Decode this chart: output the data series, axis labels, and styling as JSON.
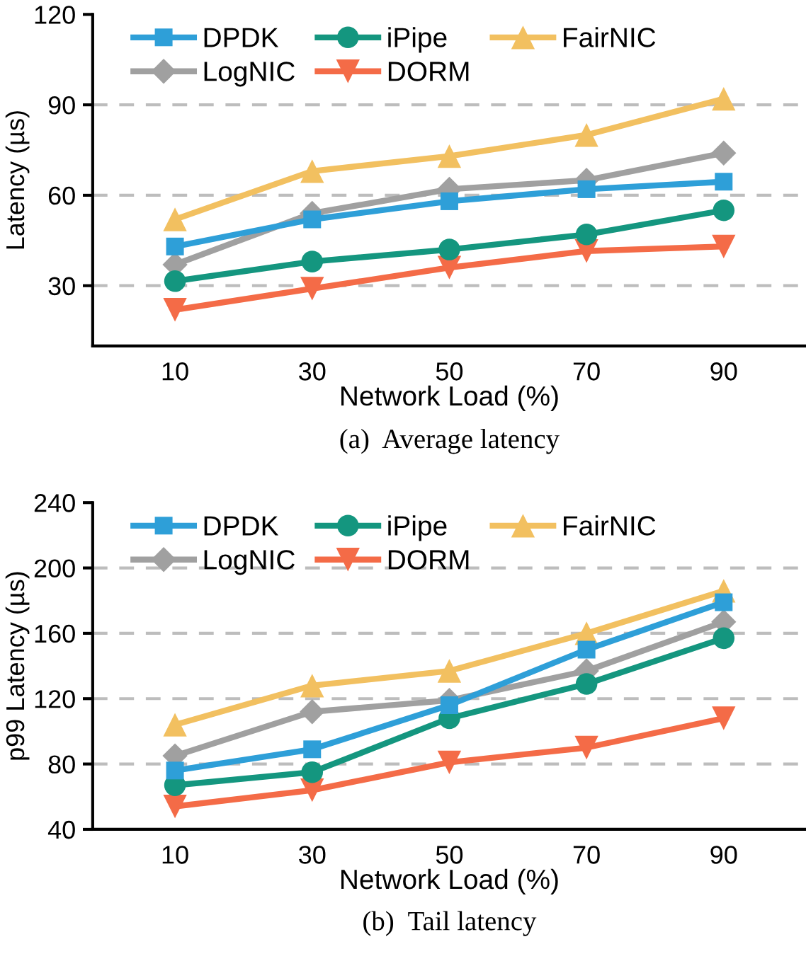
{
  "chart_data": [
    {
      "type": "line",
      "title": "(a)  Average latency",
      "xlabel": "Network Load (%)",
      "ylabel": "Latency (µs)",
      "x": [
        10,
        30,
        50,
        70,
        90
      ],
      "xlim": [
        -2,
        102
      ],
      "xticks": [
        10,
        30,
        50,
        70,
        90
      ],
      "ylim": [
        10,
        120
      ],
      "yticks": [
        30,
        60,
        90,
        120
      ],
      "grid": "y",
      "legend": "top left",
      "series": [
        {
          "name": "DPDK",
          "color": "#2e9fd8",
          "marker": "square",
          "values": [
            43,
            52,
            58,
            62,
            64.5
          ]
        },
        {
          "name": "iPipe",
          "color": "#14967f",
          "marker": "circle",
          "values": [
            31.5,
            38,
            42,
            47,
            55
          ]
        },
        {
          "name": "FairNIC",
          "color": "#f2c060",
          "marker": "triangle",
          "values": [
            52,
            68,
            73,
            80,
            92
          ]
        },
        {
          "name": "LogNIC",
          "color": "#a0a0a0",
          "marker": "diamond",
          "values": [
            37,
            54,
            62,
            65,
            74
          ]
        },
        {
          "name": "DORM",
          "color": "#f46b47",
          "marker": "triangle_down",
          "values": [
            22,
            29,
            36,
            41.5,
            43
          ]
        }
      ]
    },
    {
      "type": "line",
      "title": "(b)  Tail latency",
      "xlabel": "Network Load (%)",
      "ylabel": "p99 Latency (µs)",
      "x": [
        10,
        30,
        50,
        70,
        90
      ],
      "xlim": [
        -2,
        102
      ],
      "xticks": [
        10,
        30,
        50,
        70,
        90
      ],
      "ylim": [
        40,
        240
      ],
      "yticks": [
        40,
        80,
        120,
        160,
        200,
        240
      ],
      "grid": "y",
      "legend": "top left",
      "series": [
        {
          "name": "DPDK",
          "color": "#2e9fd8",
          "marker": "square",
          "values": [
            76,
            89,
            116,
            150,
            179
          ]
        },
        {
          "name": "iPipe",
          "color": "#14967f",
          "marker": "circle",
          "values": [
            67,
            75,
            108,
            129,
            157
          ]
        },
        {
          "name": "FairNIC",
          "color": "#f2c060",
          "marker": "triangle",
          "values": [
            104,
            128,
            137,
            160,
            186
          ]
        },
        {
          "name": "LogNIC",
          "color": "#a0a0a0",
          "marker": "diamond",
          "values": [
            85,
            112,
            119,
            137,
            167
          ]
        },
        {
          "name": "DORM",
          "color": "#f46b47",
          "marker": "triangle_down",
          "values": [
            54,
            64,
            81,
            90,
            108
          ]
        }
      ]
    }
  ]
}
